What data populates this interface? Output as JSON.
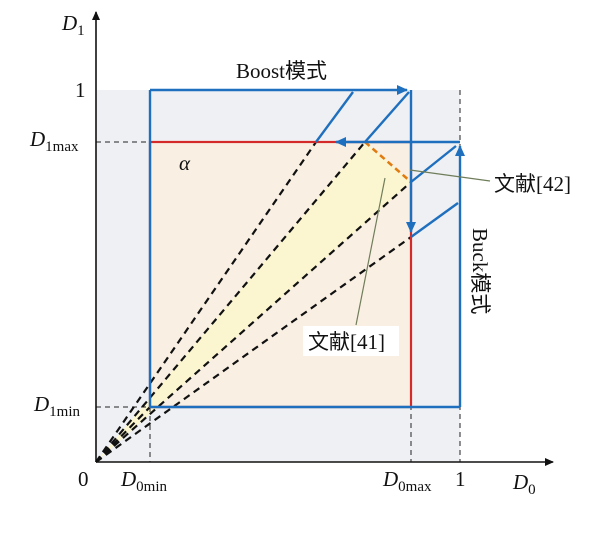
{
  "axes": {
    "y_axis_label": "D",
    "y_axis_sub": "1",
    "x_axis_label": "D",
    "x_axis_sub": "0",
    "origin_label": "0"
  },
  "ticks": {
    "y_one": "1",
    "y_max_main": "D",
    "y_max_sub": "1max",
    "y_min_main": "D",
    "y_min_sub": "1min",
    "x_min_main": "D",
    "x_min_sub": "0min",
    "x_max_main": "D",
    "x_max_sub": "0max",
    "x_one": "1"
  },
  "labels": {
    "boost_mode": "Boost模式",
    "buck_mode": "Buck模式",
    "alpha": "α",
    "ref_42": "文献[42]",
    "ref_41": "文献[41]"
  },
  "colors": {
    "blue": "#1f6fbf",
    "red": "#d42a2a",
    "orange": "#e07b12",
    "region_fill": "#f9efe2",
    "unit_fill": "#eef0f3",
    "wedge_fill": "#fbf6cf"
  }
}
